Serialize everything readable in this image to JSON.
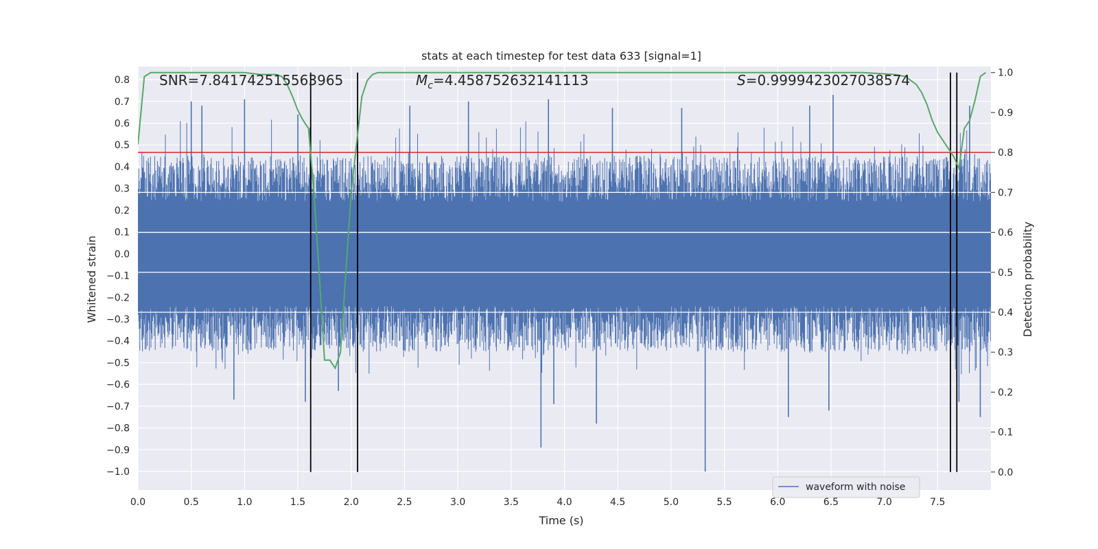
{
  "chart_data": {
    "type": "line",
    "title": "stats at each timestep for test data 633 [signal=1]",
    "xlabel": "Time (s)",
    "ylabel_left": "Whitened strain",
    "ylabel_right": "Detection probability",
    "xlim": [
      0.0,
      8.0
    ],
    "ylim_left": [
      -1.085,
      0.86
    ],
    "ylim_right": [
      -0.045,
      1.015
    ],
    "x_ticks": [
      0.0,
      0.5,
      1.0,
      1.5,
      2.0,
      2.5,
      3.0,
      3.5,
      4.0,
      4.5,
      5.0,
      5.5,
      6.0,
      6.5,
      7.0,
      7.5
    ],
    "x_tick_labels": [
      "0.0",
      "0.5",
      "1.0",
      "1.5",
      "2.0",
      "2.5",
      "3.0",
      "3.5",
      "4.0",
      "4.5",
      "5.0",
      "5.5",
      "6.0",
      "6.5",
      "7.0",
      "7.5"
    ],
    "y_left_ticks": [
      0.8,
      0.7,
      0.6,
      0.5,
      0.4,
      0.3,
      0.2,
      0.1,
      0.0,
      -0.1,
      -0.2,
      -0.3,
      -0.4,
      -0.5,
      -0.6,
      -0.7,
      -0.8,
      -0.9,
      -1.0
    ],
    "y_left_tick_labels": [
      "0.8",
      "0.7",
      "0.6",
      "0.5",
      "0.4",
      "0.3",
      "0.2",
      "0.1",
      "0.0",
      "−0.1",
      "−0.2",
      "−0.3",
      "−0.4",
      "−0.5",
      "−0.6",
      "−0.7",
      "−0.8",
      "−0.9",
      "−1.0"
    ],
    "y_right_ticks": [
      1.0,
      0.9,
      0.8,
      0.7,
      0.6,
      0.5,
      0.4,
      0.3,
      0.2,
      0.1,
      0.0
    ],
    "y_right_tick_labels": [
      "1.0",
      "0.9",
      "0.8",
      "0.7",
      "0.6",
      "0.5",
      "0.4",
      "0.3",
      "0.2",
      "0.1",
      "0.0"
    ],
    "annotations": {
      "snr": "SNR=7.841742515563965",
      "mc": "M",
      "mc_sub": "c",
      "mc_value": "=4.458752632141113",
      "s_label": "S",
      "s_value": "=0.9999423027038574"
    },
    "legend": {
      "label": "waveform with noise",
      "position": "lower-right"
    },
    "threshold_line": {
      "value": 0.8,
      "axis": "right",
      "color": "#d62728"
    },
    "vertical_lines": [
      1.62,
      2.06,
      7.62,
      7.68
    ],
    "waveform": {
      "name": "waveform with noise",
      "color": "#4c72b0",
      "duration": 8.0,
      "core_amplitude": 0.24,
      "typical_max": 0.45,
      "spikes": [
        {
          "t": 0.5,
          "v": 0.7
        },
        {
          "t": 0.6,
          "v": 0.68
        },
        {
          "t": 1.0,
          "v": 0.71
        },
        {
          "t": 1.5,
          "v": 0.64
        },
        {
          "t": 2.55,
          "v": 0.68
        },
        {
          "t": 3.1,
          "v": 0.7
        },
        {
          "t": 3.85,
          "v": 0.71
        },
        {
          "t": 4.45,
          "v": 0.67
        },
        {
          "t": 5.1,
          "v": 0.67
        },
        {
          "t": 6.3,
          "v": 0.68
        },
        {
          "t": 6.52,
          "v": 0.73
        },
        {
          "t": 7.8,
          "v": 0.68
        },
        {
          "t": 0.9,
          "v": -0.67
        },
        {
          "t": 1.57,
          "v": -0.68
        },
        {
          "t": 1.88,
          "v": -0.63
        },
        {
          "t": 3.78,
          "v": -0.89
        },
        {
          "t": 3.9,
          "v": -0.69
        },
        {
          "t": 4.3,
          "v": -0.78
        },
        {
          "t": 5.32,
          "v": -1.0
        },
        {
          "t": 6.1,
          "v": -0.75
        },
        {
          "t": 6.48,
          "v": -0.72
        },
        {
          "t": 7.7,
          "v": -0.68
        },
        {
          "t": 7.9,
          "v": -0.75
        }
      ]
    },
    "detection_probability": {
      "name": "Detection probability",
      "color": "#55a868",
      "x": [
        0.0,
        0.06,
        0.12,
        0.2,
        0.6,
        1.0,
        1.15,
        1.2,
        1.3,
        1.35,
        1.4,
        1.45,
        1.5,
        1.55,
        1.6,
        1.65,
        1.7,
        1.75,
        1.8,
        1.85,
        1.9,
        1.95,
        2.0,
        2.05,
        2.1,
        2.15,
        2.2,
        2.25,
        2.3,
        2.5,
        3.0,
        4.0,
        5.0,
        6.0,
        6.8,
        7.1,
        7.2,
        7.3,
        7.35,
        7.4,
        7.45,
        7.5,
        7.55,
        7.6,
        7.65,
        7.7,
        7.75,
        7.8,
        7.85,
        7.9,
        7.95
      ],
      "y": [
        0.82,
        0.99,
        1.0,
        1.0,
        1.0,
        1.0,
        0.995,
        0.995,
        0.995,
        0.99,
        0.97,
        0.94,
        0.905,
        0.88,
        0.86,
        0.7,
        0.5,
        0.28,
        0.28,
        0.26,
        0.3,
        0.5,
        0.7,
        0.82,
        0.94,
        0.98,
        0.995,
        1.0,
        1.0,
        1.0,
        1.0,
        1.0,
        1.0,
        1.0,
        1.0,
        0.995,
        0.99,
        0.97,
        0.95,
        0.92,
        0.88,
        0.85,
        0.83,
        0.81,
        0.79,
        0.76,
        0.86,
        0.88,
        0.93,
        0.99,
        1.0
      ]
    }
  }
}
